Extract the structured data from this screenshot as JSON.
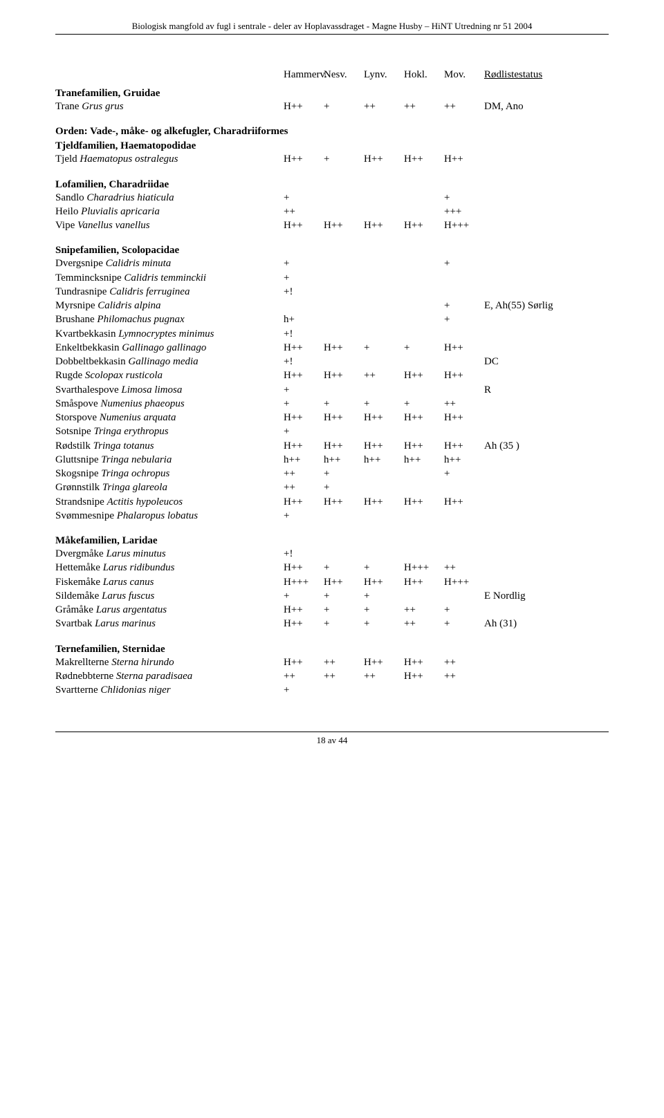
{
  "header": "Biologisk mangfold av fugl i sentrale - deler av Hoplavassdraget - Magne Husby – HiNT Utredning nr 51 2004",
  "columns": [
    "Hammerv.",
    "Nesv.",
    "Lynv.",
    "Hokl.",
    "Mov.",
    "Rødlistestatus"
  ],
  "sections": [
    {
      "family": "Tranefamilien, Gruidae",
      "rows": [
        {
          "common": "Trane ",
          "latin": "Grus grus",
          "cols": [
            "H++",
            "+",
            "++",
            "++",
            "++"
          ],
          "status": "DM, Ano"
        }
      ]
    },
    {
      "order": "Orden: Vade-, måke- og alkefugler, Charadriiformes",
      "family": "Tjeldfamilien, Haematopodidae",
      "rows": [
        {
          "common": "Tjeld ",
          "latin": "Haematopus ostralegus",
          "cols": [
            "H++",
            "+",
            "H++",
            "H++",
            "H++"
          ],
          "status": ""
        }
      ]
    },
    {
      "family": "Lofamilien, Charadriidae",
      "rows": [
        {
          "common": "Sandlo ",
          "latin": "Charadrius hiaticula",
          "cols": [
            "+",
            "",
            "",
            "",
            "+"
          ],
          "status": ""
        },
        {
          "common": "Heilo ",
          "latin": "Pluvialis apricaria",
          "cols": [
            "++",
            "",
            "",
            "",
            "+++"
          ],
          "status": ""
        },
        {
          "common": "Vipe ",
          "latin": "Vanellus vanellus",
          "cols": [
            "H++",
            "H++",
            "H++",
            "H++",
            "H+++"
          ],
          "status": ""
        }
      ]
    },
    {
      "family": "Snipefamilien, Scolopacidae",
      "rows": [
        {
          "common": "Dvergsnipe ",
          "latin": "Calidris minuta",
          "cols": [
            "+",
            "",
            "",
            "",
            "+"
          ],
          "status": ""
        },
        {
          "common": "Temmincksnipe ",
          "latin": "Calidris temminckii",
          "cols": [
            "+",
            "",
            "",
            "",
            ""
          ],
          "status": ""
        },
        {
          "common": "Tundrasnipe ",
          "latin": "Calidris ferruginea",
          "cols": [
            "+!",
            "",
            "",
            "",
            ""
          ],
          "status": ""
        },
        {
          "common": "Myrsnipe ",
          "latin": "Calidris alpina",
          "cols": [
            "",
            "",
            "",
            "",
            "+"
          ],
          "status": "E, Ah(55) Sørlig"
        },
        {
          "common": "Brushane ",
          "latin": "Philomachus pugnax",
          "cols": [
            "h+",
            "",
            "",
            "",
            "+"
          ],
          "status": ""
        },
        {
          "common": "Kvartbekkasin ",
          "latin": "Lymnocryptes minimus",
          "cols": [
            "+!",
            "",
            "",
            "",
            ""
          ],
          "status": ""
        },
        {
          "common": "Enkeltbekkasin ",
          "latin": "Gallinago gallinago",
          "cols": [
            "H++",
            "H++",
            "+",
            "+",
            "H++"
          ],
          "status": ""
        },
        {
          "common": "Dobbeltbekkasin ",
          "latin": "Gallinago media",
          "cols": [
            "+!",
            "",
            "",
            "",
            ""
          ],
          "status": "DC"
        },
        {
          "common": "Rugde ",
          "latin": "Scolopax rusticola",
          "cols": [
            "H++",
            "H++",
            "++",
            "H++",
            "H++"
          ],
          "status": ""
        },
        {
          "common": "Svarthalespove ",
          "latin": "Limosa limosa",
          "cols": [
            "+",
            "",
            "",
            "",
            ""
          ],
          "status": "R"
        },
        {
          "common": "Småspove ",
          "latin": "Numenius phaeopus",
          "cols": [
            "+",
            "+",
            "+",
            "+",
            "++"
          ],
          "status": ""
        },
        {
          "common": "Storspove ",
          "latin": "Numenius arquata",
          "cols": [
            "H++",
            "H++",
            "H++",
            "H++",
            "H++"
          ],
          "status": ""
        },
        {
          "common": "Sotsnipe ",
          "latin": "Tringa erythropus",
          "cols": [
            "+",
            "",
            "",
            "",
            ""
          ],
          "status": ""
        },
        {
          "common": "Rødstilk ",
          "latin": "Tringa totanus",
          "cols": [
            "H++",
            "H++",
            "H++",
            "H++",
            "H++"
          ],
          "status": "Ah (35 )"
        },
        {
          "common": "Gluttsnipe ",
          "latin": "Tringa nebularia",
          "cols": [
            "h++",
            "h++",
            "h++",
            "h++",
            "h++"
          ],
          "status": ""
        },
        {
          "common": "Skogsnipe ",
          "latin": "Tringa ochropus",
          "cols": [
            "++",
            "+",
            "",
            "",
            "+"
          ],
          "status": ""
        },
        {
          "common": "Grønnstilk ",
          "latin": "Tringa glareola",
          "cols": [
            "++",
            "+",
            "",
            "",
            ""
          ],
          "status": ""
        },
        {
          "common": "Strandsnipe ",
          "latin": "Actitis hypoleucos",
          "cols": [
            "H++",
            "H++",
            "H++",
            "H++",
            "H++"
          ],
          "status": ""
        },
        {
          "common": "Svømmesnipe ",
          "latin": "Phalaropus lobatus",
          "cols": [
            "+",
            "",
            "",
            "",
            ""
          ],
          "status": ""
        }
      ]
    },
    {
      "family": "Måkefamilien, Laridae",
      "rows": [
        {
          "common": "Dvergmåke ",
          "latin": "Larus minutus",
          "cols": [
            "+!",
            "",
            "",
            "",
            ""
          ],
          "status": ""
        },
        {
          "common": "Hettemåke ",
          "latin": "Larus ridibundus",
          "cols": [
            "H++",
            "+",
            "+",
            "H+++",
            "++"
          ],
          "status": ""
        },
        {
          "common": "Fiskemåke ",
          "latin": "Larus canus",
          "cols": [
            "H+++",
            "H++",
            "H++",
            "H++",
            "H+++"
          ],
          "status": ""
        },
        {
          "common": "Sildemåke ",
          "latin": "Larus fuscus",
          "cols": [
            "+",
            "+",
            "+",
            "",
            ""
          ],
          "status": "E Nordlig"
        },
        {
          "common": "Gråmåke ",
          "latin": "Larus argentatus",
          "cols": [
            "H++",
            "+",
            "+",
            "++",
            "+"
          ],
          "status": ""
        },
        {
          "common": "Svartbak ",
          "latin": "Larus marinus",
          "cols": [
            "H++",
            "+",
            "+",
            "++",
            "+"
          ],
          "status": "Ah (31)"
        }
      ]
    },
    {
      "family": "Ternefamilien, Sternidae",
      "rows": [
        {
          "common": "Makrellterne ",
          "latin": "Sterna hirundo",
          "cols": [
            "H++",
            "++",
            "H++",
            "H++",
            "++"
          ],
          "status": ""
        },
        {
          "common": "Rødnebbterne ",
          "latin": "Sterna paradisaea",
          "cols": [
            "++",
            "++",
            "++",
            "H++",
            "++"
          ],
          "status": ""
        },
        {
          "common": "Svartterne ",
          "latin": "Chlidonias niger",
          "cols": [
            "+",
            "",
            "",
            "",
            ""
          ],
          "status": ""
        }
      ]
    }
  ],
  "footer": "18 av 44"
}
